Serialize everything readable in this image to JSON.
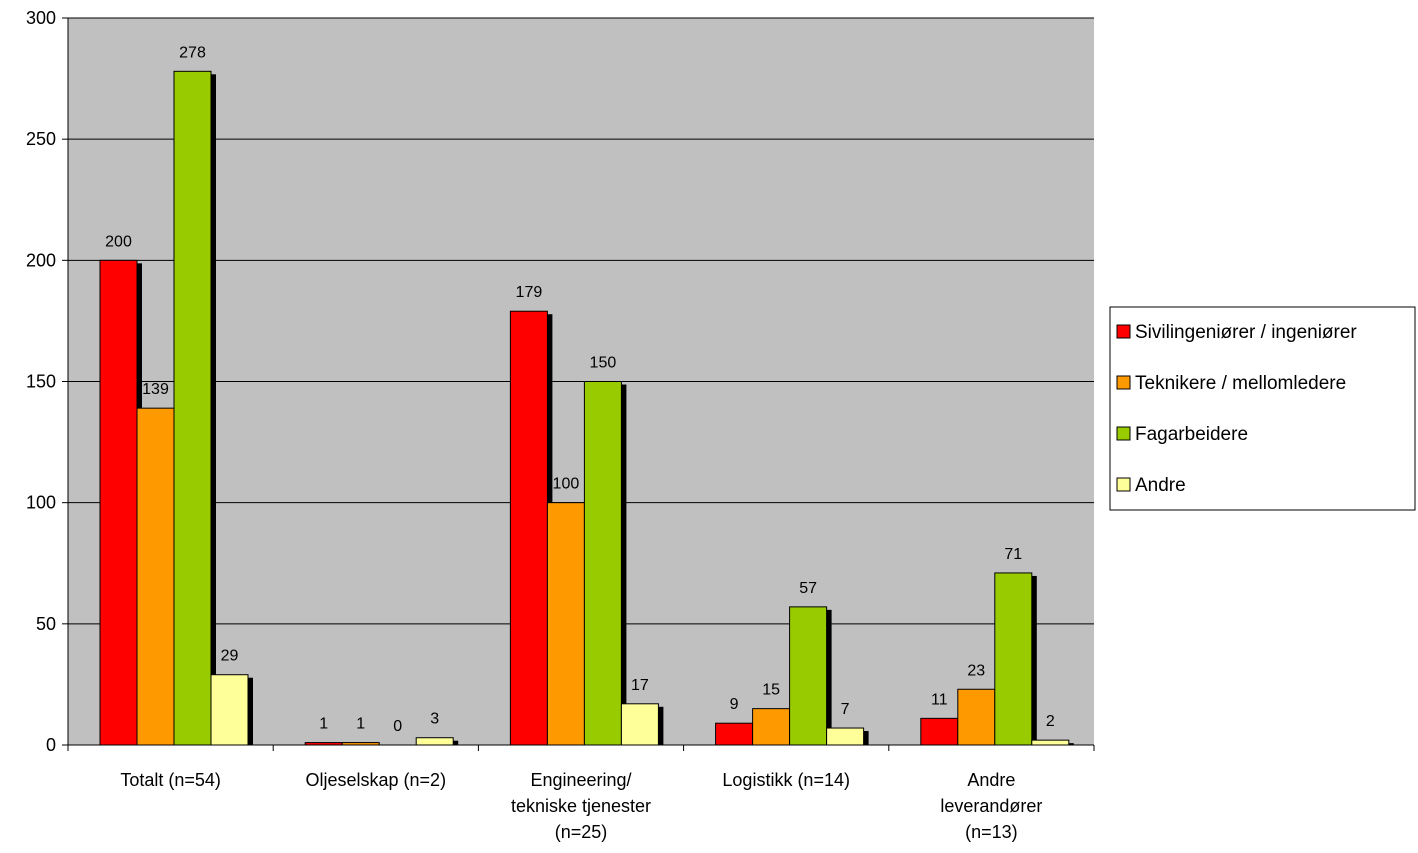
{
  "chart_data": {
    "type": "bar",
    "categories": [
      [
        "Totalt (n=54)"
      ],
      [
        "Oljeselskap (n=2)"
      ],
      [
        "Engineering/",
        "tekniske tjenester",
        "(n=25)"
      ],
      [
        "Logistikk (n=14)"
      ],
      [
        "Andre",
        "leverandører",
        "(n=13)"
      ]
    ],
    "series": [
      {
        "name": "Sivilingeniører / ingeniører",
        "color": "#ff0000",
        "values": [
          200,
          1,
          179,
          9,
          11
        ]
      },
      {
        "name": "Teknikere / mellomledere",
        "color": "#ff9900",
        "values": [
          139,
          1,
          100,
          15,
          23
        ]
      },
      {
        "name": "Fagarbeidere",
        "color": "#99cc00",
        "values": [
          278,
          0,
          150,
          57,
          71
        ]
      },
      {
        "name": "Andre",
        "color": "#ffff99",
        "values": [
          29,
          3,
          17,
          7,
          2
        ]
      }
    ],
    "ylim": [
      0,
      300
    ],
    "yticks": [
      0,
      50,
      100,
      150,
      200,
      250,
      300
    ],
    "grid": true,
    "plot_background": "#c0c0c0",
    "legend_position": "right"
  }
}
